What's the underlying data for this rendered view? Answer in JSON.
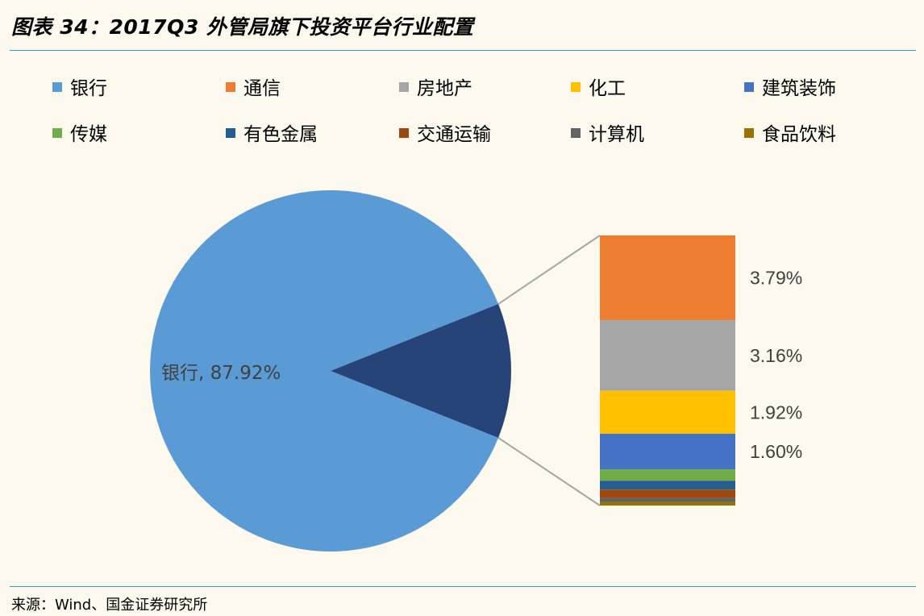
{
  "title": "图表 34：2017Q3 外管局旗下投资平台行业配置",
  "source": "来源：Wind、国金证券研究所",
  "chart_data": {
    "type": "pie",
    "subtype": "bar-of-pie",
    "legend_position": "top",
    "series": [
      {
        "name": "银行",
        "value": 87.92,
        "color": "#5b9bd5"
      },
      {
        "name": "通信",
        "value": 3.79,
        "color": "#ed7d31"
      },
      {
        "name": "房地产",
        "value": 3.16,
        "color": "#a5a5a5"
      },
      {
        "name": "化工",
        "value": 1.92,
        "color": "#ffc000"
      },
      {
        "name": "建筑装饰",
        "value": 1.6,
        "color": "#4472c4"
      },
      {
        "name": "传媒",
        "value": 0.5,
        "color": "#70ad47"
      },
      {
        "name": "有色金属",
        "value": 0.4,
        "color": "#255e91"
      },
      {
        "name": "交通运输",
        "value": 0.37,
        "color": "#9e480e"
      },
      {
        "name": "计算机",
        "value": 0.18,
        "color": "#636363"
      },
      {
        "name": "食品饮料",
        "value": 0.16,
        "color": "#997300"
      }
    ],
    "pie_label": "银行, 87.92%",
    "bar_labels": [
      "3.79%",
      "3.16%",
      "1.92%",
      "1.60%"
    ],
    "other_slice_color": "#264478"
  }
}
